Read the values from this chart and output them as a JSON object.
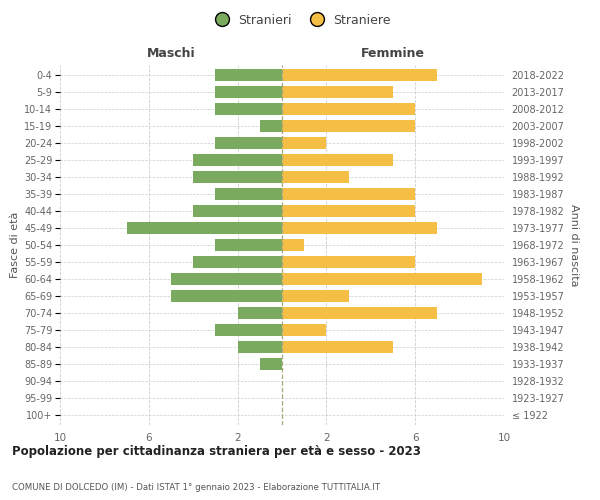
{
  "age_groups": [
    "100+",
    "95-99",
    "90-94",
    "85-89",
    "80-84",
    "75-79",
    "70-74",
    "65-69",
    "60-64",
    "55-59",
    "50-54",
    "45-49",
    "40-44",
    "35-39",
    "30-34",
    "25-29",
    "20-24",
    "15-19",
    "10-14",
    "5-9",
    "0-4"
  ],
  "birth_years": [
    "≤ 1922",
    "1923-1927",
    "1928-1932",
    "1933-1937",
    "1938-1942",
    "1943-1947",
    "1948-1952",
    "1953-1957",
    "1958-1962",
    "1963-1967",
    "1968-1972",
    "1973-1977",
    "1978-1982",
    "1983-1987",
    "1988-1992",
    "1993-1997",
    "1998-2002",
    "2003-2007",
    "2008-2012",
    "2013-2017",
    "2018-2022"
  ],
  "males": [
    0,
    0,
    0,
    1,
    2,
    3,
    2,
    5,
    5,
    4,
    3,
    7,
    4,
    3,
    4,
    4,
    3,
    1,
    3,
    3,
    3
  ],
  "females": [
    0,
    0,
    0,
    0,
    5,
    2,
    7,
    3,
    9,
    6,
    1,
    7,
    6,
    6,
    3,
    5,
    2,
    6,
    6,
    5,
    7
  ],
  "male_color": "#7aaa5e",
  "female_color": "#f5be45",
  "title": "Popolazione per cittadinanza straniera per età e sesso - 2023",
  "subtitle": "COMUNE DI DOLCEDO (IM) - Dati ISTAT 1° gennaio 2023 - Elaborazione TUTTITALIA.IT",
  "xlabel_left": "Maschi",
  "xlabel_right": "Femmine",
  "ylabel_left": "Fasce di età",
  "ylabel_right": "Anni di nascita",
  "legend_male": "Stranieri",
  "legend_female": "Straniere",
  "xlim": 10,
  "background_color": "#ffffff",
  "grid_color": "#cccccc",
  "bar_height": 0.72
}
